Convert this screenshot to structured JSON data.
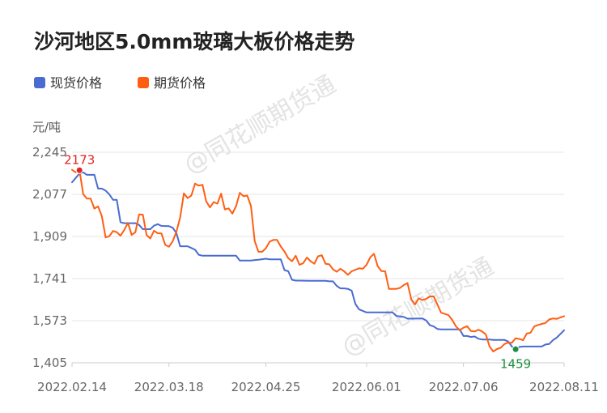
{
  "chart_data": {
    "type": "line",
    "title": "沙河地区5.0mm玻璃大板价格走势",
    "unit": "元/吨",
    "xlabel": "",
    "ylabel": "",
    "ylim": [
      1405,
      2245
    ],
    "yticks": [
      "2,245",
      "2,077",
      "1,909",
      "1,741",
      "1,573",
      "1,405"
    ],
    "yticks_values": [
      2245,
      2077,
      1909,
      1741,
      1573,
      1405
    ],
    "xticks": [
      "2022.02.14",
      "2022.03.18",
      "2022.04.25",
      "2022.06.01",
      "2022.07.06",
      "2022.08.11"
    ],
    "xlim": [
      0,
      132
    ],
    "xticks_index": [
      0,
      26,
      52,
      79,
      105,
      132
    ],
    "grid": true,
    "legend_position": "top-left",
    "series": [
      {
        "name": "现货价格",
        "color": "#4a6bd0",
        "points": [
          [
            0,
            2125
          ],
          [
            2,
            2160
          ],
          [
            3,
            2165
          ],
          [
            4,
            2155
          ],
          [
            5,
            2155
          ],
          [
            6,
            2155
          ],
          [
            7,
            2100
          ],
          [
            8,
            2100
          ],
          [
            9,
            2092
          ],
          [
            10,
            2077
          ],
          [
            11,
            2055
          ],
          [
            12,
            2055
          ],
          [
            13,
            1966
          ],
          [
            14,
            1962
          ],
          [
            17,
            1962
          ],
          [
            18,
            1955
          ],
          [
            19,
            1938
          ],
          [
            21,
            1938
          ],
          [
            22,
            1952
          ],
          [
            23,
            1958
          ],
          [
            24,
            1951
          ],
          [
            26,
            1950
          ],
          [
            27,
            1944
          ],
          [
            28,
            1922
          ],
          [
            29,
            1870
          ],
          [
            31,
            1870
          ],
          [
            32,
            1863
          ],
          [
            33,
            1856
          ],
          [
            34,
            1836
          ],
          [
            35,
            1832
          ],
          [
            43,
            1832
          ],
          [
            44,
            1832
          ],
          [
            45,
            1813
          ],
          [
            48,
            1813
          ],
          [
            49,
            1815
          ],
          [
            50,
            1816
          ],
          [
            52,
            1820
          ],
          [
            53,
            1818
          ],
          [
            55,
            1818
          ],
          [
            56,
            1818
          ],
          [
            57,
            1775
          ],
          [
            58,
            1770
          ],
          [
            59,
            1736
          ],
          [
            60,
            1733
          ],
          [
            61,
            1733
          ],
          [
            64,
            1732
          ],
          [
            68,
            1732
          ],
          [
            69,
            1730
          ],
          [
            70,
            1730
          ],
          [
            71,
            1712
          ],
          [
            72,
            1702
          ],
          [
            73,
            1702
          ],
          [
            74,
            1700
          ],
          [
            75,
            1693
          ],
          [
            76,
            1640
          ],
          [
            77,
            1618
          ],
          [
            78,
            1612
          ],
          [
            79,
            1606
          ],
          [
            86,
            1606
          ],
          [
            87,
            1592
          ],
          [
            88,
            1590
          ],
          [
            89,
            1588
          ],
          [
            90,
            1581
          ],
          [
            91,
            1581
          ],
          [
            94,
            1582
          ],
          [
            95,
            1574
          ],
          [
            96,
            1555
          ],
          [
            97,
            1550
          ],
          [
            98,
            1540
          ],
          [
            99,
            1538
          ],
          [
            102,
            1538
          ],
          [
            104,
            1538
          ],
          [
            105,
            1512
          ],
          [
            106,
            1512
          ],
          [
            107,
            1508
          ],
          [
            108,
            1510
          ],
          [
            109,
            1501
          ],
          [
            110,
            1498
          ],
          [
            112,
            1498
          ],
          [
            113,
            1496
          ],
          [
            116,
            1496
          ],
          [
            117,
            1490
          ],
          [
            118,
            1470
          ],
          [
            119,
            1459
          ],
          [
            120,
            1468
          ],
          [
            121,
            1470
          ],
          [
            126,
            1470
          ],
          [
            127,
            1478
          ],
          [
            128,
            1480
          ],
          [
            129,
            1495
          ],
          [
            130,
            1505
          ],
          [
            131,
            1520
          ],
          [
            132,
            1535
          ]
        ]
      },
      {
        "name": "期货价格",
        "color": "#ff5e12",
        "points": [
          [
            0,
            2175
          ],
          [
            1,
            2165
          ],
          [
            2,
            2173
          ],
          [
            3,
            2078
          ],
          [
            4,
            2060
          ],
          [
            5,
            2060
          ],
          [
            6,
            2020
          ],
          [
            7,
            2029
          ],
          [
            8,
            1990
          ],
          [
            9,
            1905
          ],
          [
            10,
            1910
          ],
          [
            11,
            1931
          ],
          [
            12,
            1926
          ],
          [
            13,
            1912
          ],
          [
            14,
            1935
          ],
          [
            15,
            1963
          ],
          [
            16,
            1915
          ],
          [
            17,
            1926
          ],
          [
            18,
            1997
          ],
          [
            19,
            1996
          ],
          [
            20,
            1915
          ],
          [
            21,
            1901
          ],
          [
            22,
            1932
          ],
          [
            23,
            1922
          ],
          [
            24,
            1921
          ],
          [
            25,
            1875
          ],
          [
            26,
            1868
          ],
          [
            27,
            1890
          ],
          [
            28,
            1928
          ],
          [
            29,
            1985
          ],
          [
            30,
            2081
          ],
          [
            31,
            2062
          ],
          [
            32,
            2072
          ],
          [
            33,
            2120
          ],
          [
            34,
            2112
          ],
          [
            35,
            2115
          ],
          [
            36,
            2049
          ],
          [
            37,
            2025
          ],
          [
            38,
            2046
          ],
          [
            39,
            2040
          ],
          [
            40,
            2080
          ],
          [
            41,
            2017
          ],
          [
            42,
            2021
          ],
          [
            43,
            2000
          ],
          [
            44,
            2030
          ],
          [
            45,
            2083
          ],
          [
            46,
            2070
          ],
          [
            47,
            2072
          ],
          [
            48,
            2030
          ],
          [
            49,
            1891
          ],
          [
            50,
            1848
          ],
          [
            51,
            1848
          ],
          [
            52,
            1862
          ],
          [
            53,
            1888
          ],
          [
            54,
            1895
          ],
          [
            55,
            1895
          ],
          [
            56,
            1869
          ],
          [
            57,
            1849
          ],
          [
            58,
            1822
          ],
          [
            59,
            1810
          ],
          [
            60,
            1832
          ],
          [
            61,
            1796
          ],
          [
            62,
            1802
          ],
          [
            63,
            1825
          ],
          [
            64,
            1810
          ],
          [
            65,
            1800
          ],
          [
            66,
            1830
          ],
          [
            67,
            1834
          ],
          [
            68,
            1800
          ],
          [
            69,
            1798
          ],
          [
            70,
            1778
          ],
          [
            71,
            1768
          ],
          [
            72,
            1780
          ],
          [
            73,
            1770
          ],
          [
            74,
            1756
          ],
          [
            75,
            1770
          ],
          [
            76,
            1776
          ],
          [
            77,
            1782
          ],
          [
            78,
            1780
          ],
          [
            79,
            1796
          ],
          [
            80,
            1826
          ],
          [
            81,
            1840
          ],
          [
            82,
            1790
          ],
          [
            83,
            1771
          ],
          [
            84,
            1770
          ],
          [
            85,
            1700
          ],
          [
            86,
            1700
          ],
          [
            87,
            1700
          ],
          [
            88,
            1704
          ],
          [
            89,
            1715
          ],
          [
            90,
            1723
          ],
          [
            91,
            1658
          ],
          [
            92,
            1638
          ],
          [
            93,
            1662
          ],
          [
            94,
            1655
          ],
          [
            95,
            1660
          ],
          [
            96,
            1670
          ],
          [
            97,
            1670
          ],
          [
            98,
            1638
          ],
          [
            99,
            1605
          ],
          [
            100,
            1600
          ],
          [
            101,
            1595
          ],
          [
            102,
            1576
          ],
          [
            103,
            1550
          ],
          [
            104,
            1535
          ],
          [
            105,
            1545
          ],
          [
            106,
            1551
          ],
          [
            107,
            1532
          ],
          [
            108,
            1530
          ],
          [
            109,
            1537
          ],
          [
            110,
            1530
          ],
          [
            111,
            1518
          ],
          [
            112,
            1470
          ],
          [
            113,
            1450
          ],
          [
            114,
            1460
          ],
          [
            115,
            1465
          ],
          [
            116,
            1480
          ],
          [
            117,
            1485
          ],
          [
            118,
            1485
          ],
          [
            119,
            1503
          ],
          [
            120,
            1500
          ],
          [
            121,
            1495
          ],
          [
            122,
            1522
          ],
          [
            123,
            1525
          ],
          [
            124,
            1550
          ],
          [
            125,
            1556
          ],
          [
            126,
            1560
          ],
          [
            127,
            1564
          ],
          [
            128,
            1578
          ],
          [
            129,
            1582
          ],
          [
            130,
            1580
          ],
          [
            131,
            1586
          ],
          [
            132,
            1591
          ]
        ]
      }
    ],
    "annotations": [
      {
        "label": "2173",
        "x": 2,
        "y": 2173,
        "color": "#e32222",
        "position": "above"
      },
      {
        "label": "1459",
        "x": 119,
        "y": 1459,
        "color": "#1e8f3e",
        "position": "below"
      }
    ]
  },
  "watermark": "@同花顺期货通"
}
